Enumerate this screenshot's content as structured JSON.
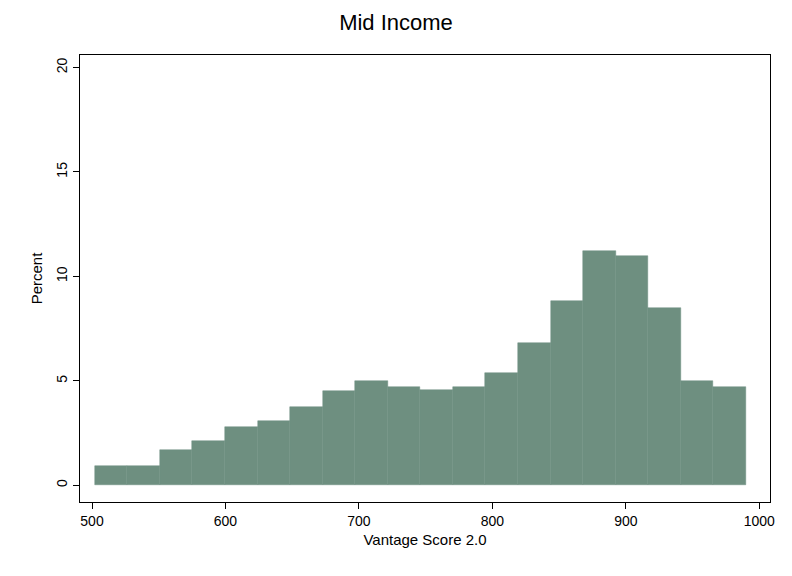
{
  "chart_data": {
    "type": "histogram",
    "title": "Mid Income",
    "x_label": "Vantage Score 2.0",
    "y_label": "Percent",
    "bins": [
      502,
      526.4,
      550.8,
      575.2,
      599.6,
      624,
      648.4,
      672.8,
      697.2,
      721.6,
      746,
      770.4,
      794.8,
      819.2,
      843.6,
      868,
      892.4,
      916.8,
      941.2,
      965.6,
      990
    ],
    "values": [
      0.9,
      0.9,
      1.67,
      2.1,
      2.77,
      3.1,
      3.73,
      4.5,
      4.98,
      4.69,
      4.55,
      4.69,
      5.4,
      6.8,
      8.8,
      11.2,
      10.96,
      8.5,
      5.0,
      4.7
    ],
    "color": "#6e8f80",
    "xlim": [
      491,
      1008
    ],
    "xticks": [
      500,
      600,
      700,
      800,
      900,
      1000
    ],
    "ylim": [
      -0.8,
      20.6
    ],
    "yticks": [
      0,
      5,
      10,
      15,
      20
    ],
    "grid": false
  }
}
